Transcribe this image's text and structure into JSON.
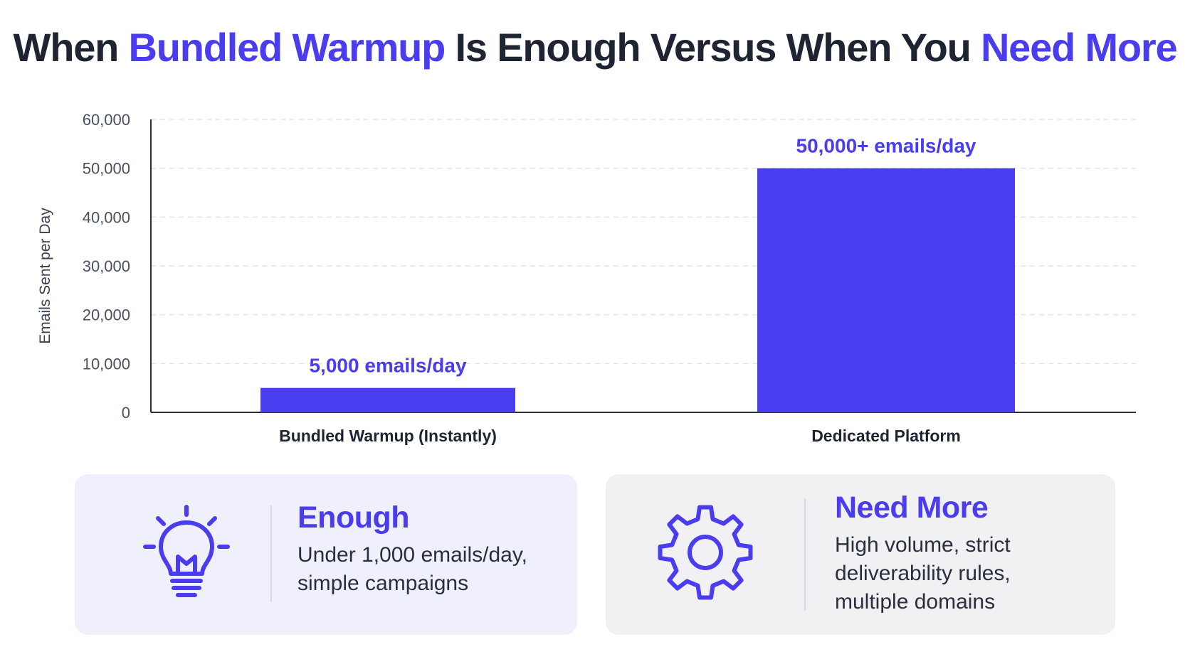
{
  "title": {
    "part1": "When ",
    "accent1": "Bundled Warmup",
    "part2": " Is Enough Versus When You ",
    "accent2": "Need More"
  },
  "colors": {
    "accent": "#4a3df0",
    "bar": "#4a3df0",
    "text_dark": "#1f2433"
  },
  "chart_data": {
    "type": "bar",
    "categories": [
      "Bundled Warmup (Instantly)",
      "Dedicated Platform"
    ],
    "values": [
      5000,
      50000
    ],
    "data_labels": [
      "5,000 emails/day",
      "50,000+ emails/day"
    ],
    "ylabel": "Emails Sent per Day",
    "ylim": [
      0,
      60000
    ],
    "yticks": [
      0,
      10000,
      20000,
      30000,
      40000,
      50000,
      60000
    ],
    "ytick_labels": [
      "0",
      "10,000",
      "20,000",
      "30,000",
      "40,000",
      "50,000",
      "60,000"
    ],
    "grid": "dashed horizontal"
  },
  "cards": [
    {
      "icon": "lightbulb-icon",
      "heading": "Enough",
      "body": "Under 1,000 emails/day, simple campaigns"
    },
    {
      "icon": "gear-icon",
      "heading": "Need More",
      "body": "High volume, strict deliverability rules, multiple domains"
    }
  ]
}
